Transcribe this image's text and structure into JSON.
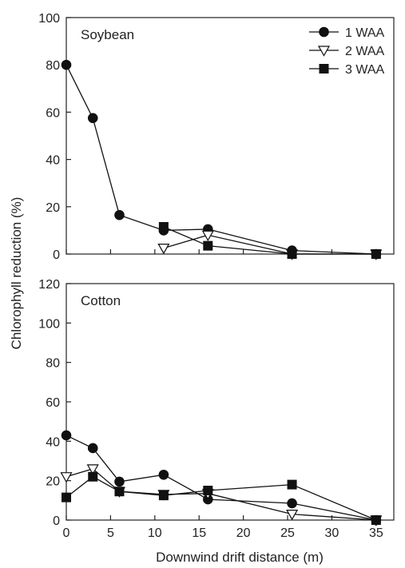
{
  "chart_data": [
    {
      "type": "line",
      "title": "Soybean",
      "xlabel": "Downwind drift distance (m)",
      "ylabel": "Chlorophyll reduction (%)",
      "xlim": [
        0,
        37
      ],
      "ylim": [
        0,
        100
      ],
      "xticks": [
        0,
        5,
        10,
        15,
        20,
        25,
        30,
        35
      ],
      "yticks": [
        0,
        20,
        40,
        60,
        80,
        100
      ],
      "legend": "top-right",
      "series": [
        {
          "name": "1 WAA",
          "marker": "circle",
          "points": [
            [
              0,
              80
            ],
            [
              3,
              57.5
            ],
            [
              6,
              16.5
            ],
            [
              11,
              10
            ],
            [
              16,
              10.5
            ],
            [
              25.5,
              1.5
            ],
            [
              35,
              0
            ]
          ]
        },
        {
          "name": "2 WAA",
          "marker": "triangle-down",
          "points": [
            [
              11,
              2.5
            ],
            [
              16,
              8
            ],
            [
              25.5,
              0
            ],
            [
              35,
              0
            ]
          ]
        },
        {
          "name": "3 WAA",
          "marker": "square",
          "points": [
            [
              11,
              11.5
            ],
            [
              16,
              3.5
            ],
            [
              25.5,
              0
            ],
            [
              35,
              0
            ]
          ]
        }
      ]
    },
    {
      "type": "line",
      "title": "Cotton",
      "xlabel": "Downwind drift distance (m)",
      "ylabel": "Chlorophyll reduction (%)",
      "xlim": [
        0,
        37
      ],
      "ylim": [
        0,
        120
      ],
      "xticks": [
        0,
        5,
        10,
        15,
        20,
        25,
        30,
        35
      ],
      "yticks": [
        0,
        20,
        40,
        60,
        80,
        100,
        120
      ],
      "series": [
        {
          "name": "1 WAA",
          "marker": "circle",
          "points": [
            [
              0,
              43
            ],
            [
              3,
              36.5
            ],
            [
              6,
              19.5
            ],
            [
              11,
              23
            ],
            [
              16,
              10.5
            ],
            [
              25.5,
              8.5
            ],
            [
              35,
              0
            ]
          ]
        },
        {
          "name": "2 WAA",
          "marker": "triangle-down",
          "points": [
            [
              0,
              22
            ],
            [
              3,
              26
            ],
            [
              6,
              14.5
            ],
            [
              11,
              13
            ],
            [
              16,
              13.5
            ],
            [
              25.5,
              3
            ],
            [
              35,
              0
            ]
          ]
        },
        {
          "name": "3 WAA",
          "marker": "square",
          "points": [
            [
              0,
              11.5
            ],
            [
              3,
              22
            ],
            [
              6,
              14.5
            ],
            [
              11,
              12.5
            ],
            [
              16,
              15
            ],
            [
              25.5,
              18
            ],
            [
              35,
              0
            ]
          ]
        }
      ]
    }
  ]
}
